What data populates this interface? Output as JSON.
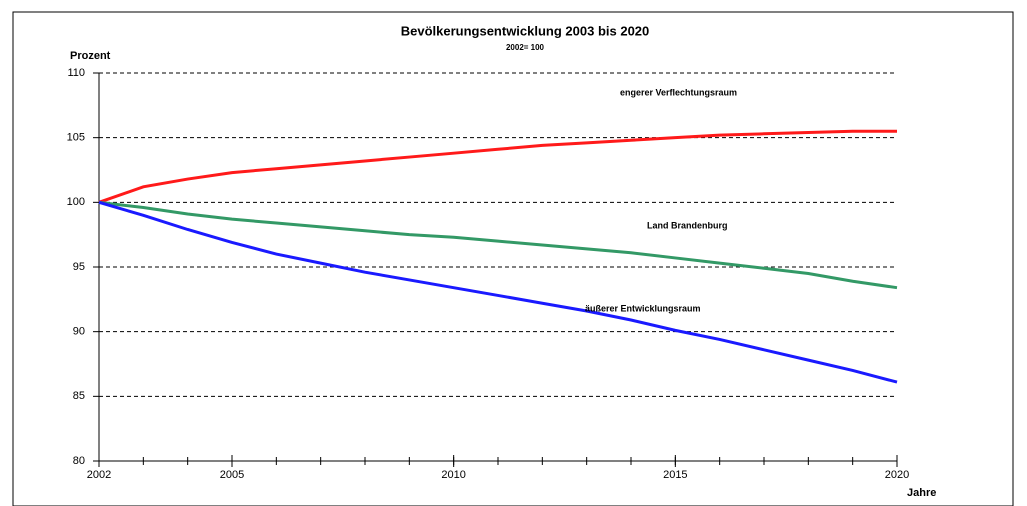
{
  "chart_data": {
    "type": "line",
    "title": "Bevölkerungsentwicklung  2003 bis 2020",
    "subtitle": "2002= 100",
    "y_label": "Prozent",
    "x_label": "Jahre",
    "x": [
      2002,
      2003,
      2004,
      2005,
      2006,
      2007,
      2008,
      2009,
      2010,
      2011,
      2012,
      2013,
      2014,
      2015,
      2016,
      2017,
      2018,
      2019,
      2020
    ],
    "series": [
      {
        "name": "engerer Verflechtungsraum",
        "color": "#ff1a1a",
        "values": [
          100,
          101.2,
          101.8,
          102.3,
          102.6,
          102.9,
          103.2,
          103.5,
          103.8,
          104.1,
          104.4,
          104.6,
          104.8,
          105.0,
          105.2,
          105.3,
          105.4,
          105.5,
          105.5
        ]
      },
      {
        "name": "Land Brandenburg",
        "color": "#339966",
        "values": [
          100,
          99.6,
          99.1,
          98.7,
          98.4,
          98.1,
          97.8,
          97.5,
          97.3,
          97.0,
          96.7,
          96.4,
          96.1,
          95.7,
          95.3,
          94.9,
          94.5,
          93.9,
          93.4
        ]
      },
      {
        "name": "äußerer Entwicklungsraum",
        "color": "#1a1aff",
        "values": [
          100,
          99.0,
          97.9,
          96.9,
          96.0,
          95.3,
          94.6,
          94.0,
          93.4,
          92.8,
          92.2,
          91.6,
          90.9,
          90.1,
          89.4,
          88.6,
          87.8,
          87.0,
          86.1
        ]
      }
    ],
    "xlim": [
      2002,
      2020
    ],
    "xticks": [
      2002,
      2005,
      2010,
      2015,
      2020
    ],
    "ylim": [
      80,
      110
    ],
    "yticks": [
      80,
      85,
      90,
      95,
      100,
      105,
      110
    ],
    "grid": true
  }
}
